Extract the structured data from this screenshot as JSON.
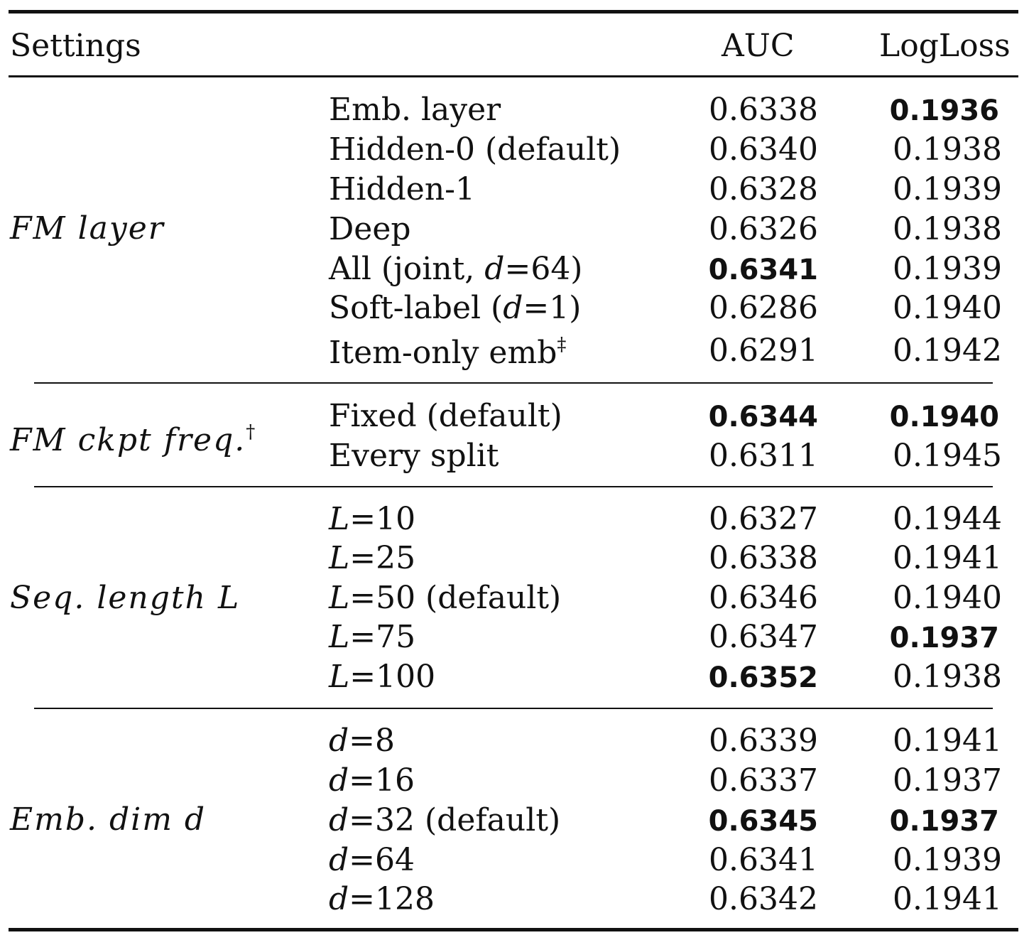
{
  "header": {
    "settings": "Settings",
    "auc": "AUC",
    "logloss": "LogLoss"
  },
  "groups": [
    {
      "label": "FM layer",
      "rows": [
        {
          "setting": "Emb. layer",
          "auc": "0.6338",
          "logloss": "0.1936",
          "auc_bold": false,
          "logloss_bold": true
        },
        {
          "setting": "Hidden-0 (default)",
          "auc": "0.6340",
          "logloss": "0.1938",
          "auc_bold": false,
          "logloss_bold": false
        },
        {
          "setting": "Hidden-1",
          "auc": "0.6328",
          "logloss": "0.1939",
          "auc_bold": false,
          "logloss_bold": false
        },
        {
          "setting": "Deep",
          "auc": "0.6326",
          "logloss": "0.1938",
          "auc_bold": false,
          "logloss_bold": false
        },
        {
          "setting": "All (joint, d=64)",
          "auc": "0.6341",
          "logloss": "0.1939",
          "auc_bold": true,
          "logloss_bold": false
        },
        {
          "setting": "Soft-label (d=1)",
          "auc": "0.6286",
          "logloss": "0.1940",
          "auc_bold": false,
          "logloss_bold": false
        },
        {
          "setting": "Item-only emb",
          "setting_sup": "‡",
          "auc": "0.6291",
          "logloss": "0.1942",
          "auc_bold": false,
          "logloss_bold": false
        }
      ]
    },
    {
      "label": "FM ckpt freq.",
      "label_sup": "†",
      "rows": [
        {
          "setting": "Fixed (default)",
          "auc": "0.6344",
          "logloss": "0.1940",
          "auc_bold": true,
          "logloss_bold": true
        },
        {
          "setting": "Every split",
          "auc": "0.6311",
          "logloss": "0.1945",
          "auc_bold": false,
          "logloss_bold": false
        }
      ]
    },
    {
      "label": "Seq. length L",
      "rows": [
        {
          "setting": "L=10",
          "auc": "0.6327",
          "logloss": "0.1944",
          "auc_bold": false,
          "logloss_bold": false
        },
        {
          "setting": "L=25",
          "auc": "0.6338",
          "logloss": "0.1941",
          "auc_bold": false,
          "logloss_bold": false
        },
        {
          "setting": "L=50 (default)",
          "auc": "0.6346",
          "logloss": "0.1940",
          "auc_bold": false,
          "logloss_bold": false
        },
        {
          "setting": "L=75",
          "auc": "0.6347",
          "logloss": "0.1937",
          "auc_bold": false,
          "logloss_bold": true
        },
        {
          "setting": "L=100",
          "auc": "0.6352",
          "logloss": "0.1938",
          "auc_bold": true,
          "logloss_bold": false
        }
      ]
    },
    {
      "label": "Emb. dim d",
      "rows": [
        {
          "setting": "d=8",
          "auc": "0.6339",
          "logloss": "0.1941",
          "auc_bold": false,
          "logloss_bold": false
        },
        {
          "setting": "d=16",
          "auc": "0.6337",
          "logloss": "0.1937",
          "auc_bold": false,
          "logloss_bold": false
        },
        {
          "setting": "d=32 (default)",
          "auc": "0.6345",
          "logloss": "0.1937",
          "auc_bold": true,
          "logloss_bold": true
        },
        {
          "setting": "d=64",
          "auc": "0.6341",
          "logloss": "0.1939",
          "auc_bold": false,
          "logloss_bold": false
        },
        {
          "setting": "d=128",
          "auc": "0.6342",
          "logloss": "0.1941",
          "auc_bold": false,
          "logloss_bold": false
        }
      ]
    }
  ]
}
